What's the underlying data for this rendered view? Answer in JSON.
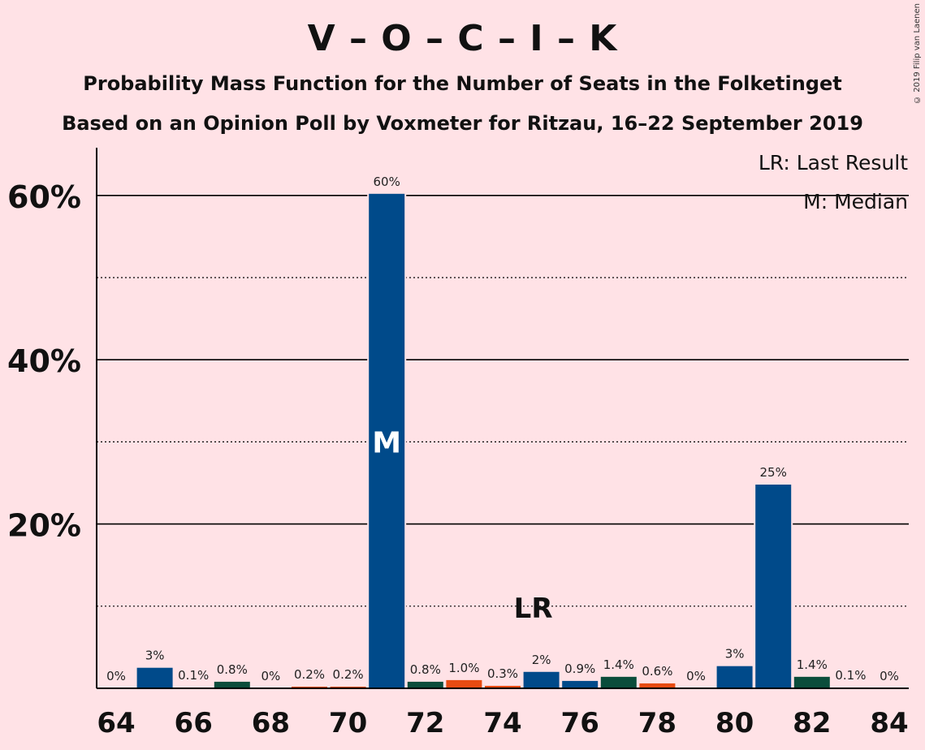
{
  "title": "V – O – C – I – K",
  "subtitle": "Probability Mass Function for the Number of Seats in the Folketinget",
  "subtitle2": "Based on an Opinion Poll by Voxmeter for Ritzau, 16–22 September 2019",
  "copyright": "© 2019 Filip van Laenen",
  "colors": {
    "background": "#FFE2E6",
    "blue": "#004A8A",
    "green": "#0B4D3B",
    "orange": "#E84B12"
  },
  "chart_data": {
    "type": "bar",
    "xlabel": "",
    "ylabel": "",
    "ylim": [
      0,
      65
    ],
    "y_ticks": [
      20,
      40,
      60
    ],
    "y_tick_labels": [
      "20%",
      "40%",
      "60%"
    ],
    "y_minor_gridlines": [
      10,
      30,
      50
    ],
    "x_ticks": [
      64,
      66,
      68,
      70,
      72,
      74,
      76,
      78,
      80,
      82,
      84
    ],
    "x_tick_labels": [
      "64",
      "66",
      "68",
      "70",
      "72",
      "74",
      "76",
      "78",
      "80",
      "82",
      "84"
    ],
    "categories": [
      64,
      65,
      66,
      67,
      68,
      69,
      70,
      71,
      72,
      73,
      74,
      75,
      76,
      77,
      78,
      79,
      80,
      81,
      82,
      83,
      84
    ],
    "values": [
      0,
      2.5,
      0.1,
      0.8,
      0,
      0.2,
      0.2,
      60.2,
      0.8,
      1.0,
      0.3,
      2.0,
      0.9,
      1.4,
      0.6,
      0,
      2.7,
      24.8,
      1.4,
      0.1,
      0
    ],
    "labels": [
      "0%",
      "3%",
      "0.1%",
      "0.8%",
      "0%",
      "0.2%",
      "0.2%",
      "60%",
      "0.8%",
      "1.0%",
      "0.3%",
      "2%",
      "0.9%",
      "1.4%",
      "0.6%",
      "0%",
      "3%",
      "25%",
      "1.4%",
      "0.1%",
      "0%"
    ],
    "bar_colors": [
      "blue",
      "blue",
      "orange",
      "green",
      "blue",
      "orange",
      "orange",
      "blue",
      "green",
      "orange",
      "orange",
      "blue",
      "blue",
      "green",
      "orange",
      "blue",
      "blue",
      "blue",
      "green",
      "blue",
      "blue"
    ],
    "median_seat": 71,
    "median_marker": "M",
    "last_result_seat": 75,
    "last_result_marker": "LR",
    "legend": [
      "LR: Last Result",
      "M: Median"
    ],
    "legend_position": "top-right"
  }
}
